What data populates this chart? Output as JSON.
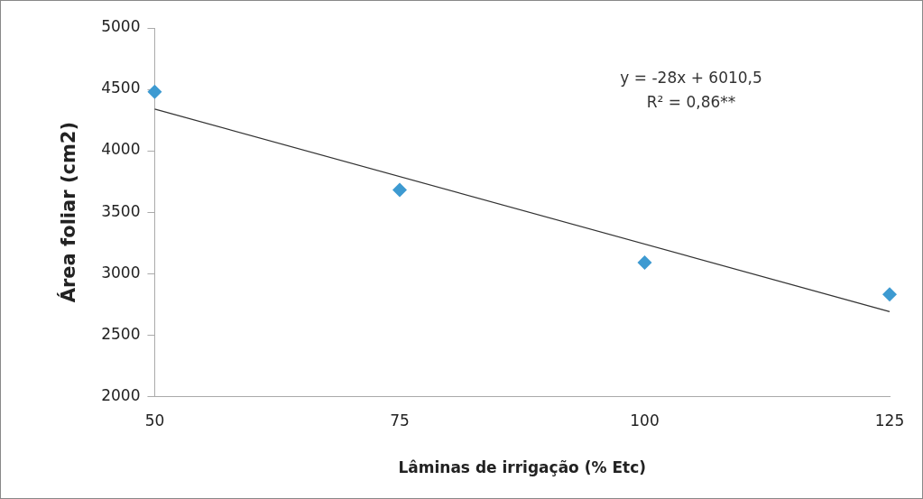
{
  "chart_data": {
    "type": "scatter",
    "xlabel": "Lâminas de irrigação (% Etc)",
    "ylabel": "Área foliar (cm2)",
    "x": [
      50,
      75,
      100,
      125
    ],
    "series": [
      {
        "color": "#3d9ad1",
        "values": [
          4480,
          3680,
          3090,
          2830
        ],
        "marker": "diamond"
      },
      {
        "type": "line",
        "color": "#333333",
        "x": [
          50,
          125
        ],
        "values": [
          4340,
          2690
        ],
        "marker": "none",
        "line_style": "solid"
      }
    ],
    "xlim": [
      50,
      125
    ],
    "xticks": [
      50,
      75,
      100,
      125
    ],
    "ylim": [
      2000,
      5000
    ],
    "yticks": [
      2000,
      2500,
      3000,
      3500,
      4000,
      4500,
      5000
    ],
    "grid": false,
    "legend": false,
    "annotations": [
      "y = -28x + 6010,5",
      "R² = 0,86**"
    ]
  }
}
